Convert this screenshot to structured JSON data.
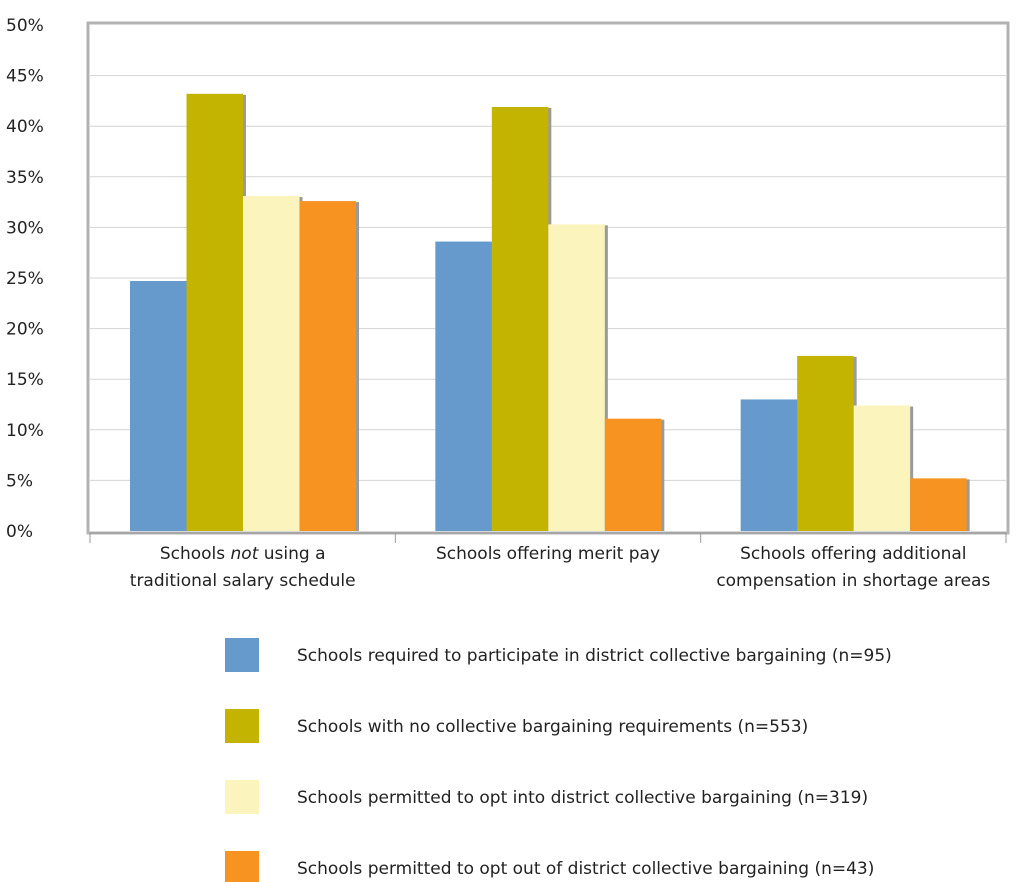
{
  "chart_data": {
    "type": "bar",
    "title": "",
    "xlabel": "",
    "ylabel": "",
    "ylim": [
      0,
      50
    ],
    "y_ticks": [
      "0%",
      "5%",
      "10%",
      "15%",
      "20%",
      "25%",
      "30%",
      "35%",
      "40%",
      "45%",
      "50%"
    ],
    "grid": true,
    "legend_position": "bottom",
    "categories": [
      {
        "lines": [
          [
            {
              "text": "Schools ",
              "italic": false
            },
            {
              "text": "not",
              "italic": true
            },
            {
              "text": " using a",
              "italic": false
            }
          ],
          [
            {
              "text": "traditional salary schedule",
              "italic": false
            }
          ]
        ]
      },
      {
        "lines": [
          [
            {
              "text": "Schools offering merit pay",
              "italic": false
            }
          ]
        ]
      },
      {
        "lines": [
          [
            {
              "text": "Schools offering additional",
              "italic": false
            }
          ],
          [
            {
              "text": "compensation in shortage areas",
              "italic": false
            }
          ]
        ]
      }
    ],
    "series": [
      {
        "name": "Schools required to participate in district collective bargaining (n=95)",
        "color": "#6699cc",
        "values": [
          24.7,
          28.6,
          13.0
        ]
      },
      {
        "name": "Schools with no collective bargaining requirements (n=553)",
        "color": "#c2b400",
        "values": [
          43.2,
          41.9,
          17.3
        ]
      },
      {
        "name": "Schools permitted to opt into district collective bargaining (n=319)",
        "color": "#fbf4bc",
        "values": [
          33.1,
          30.3,
          12.4
        ]
      },
      {
        "name": "Schools permitted to opt out of district collective bargaining (n=43)",
        "color": "#f79421",
        "values": [
          32.6,
          11.1,
          5.2
        ]
      }
    ]
  }
}
